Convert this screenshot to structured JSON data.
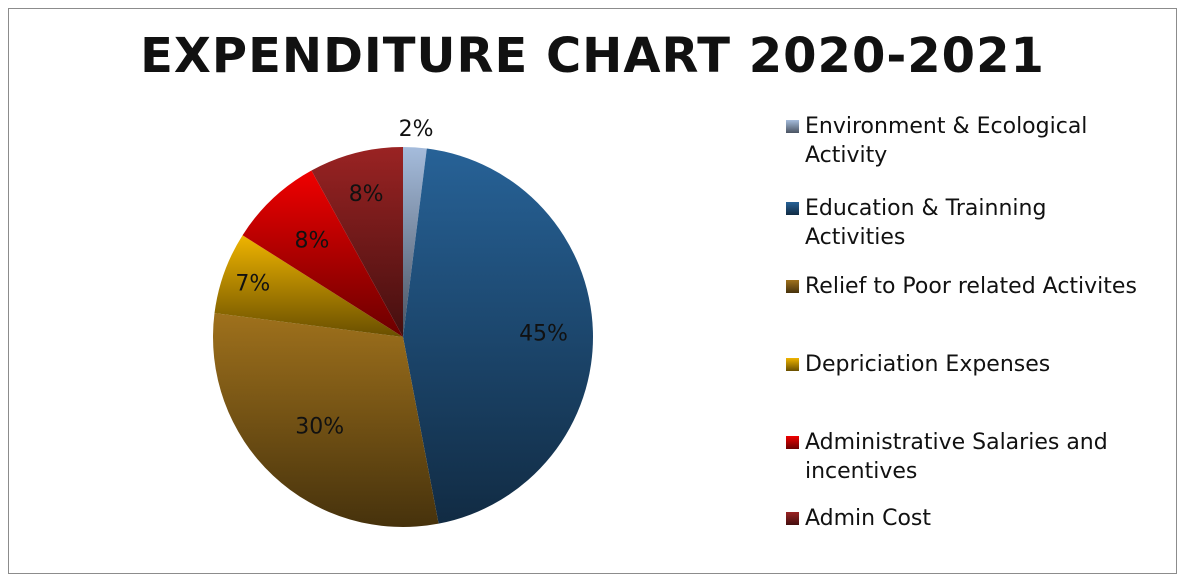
{
  "chart_data": {
    "type": "pie",
    "title": "EXPENDITURE CHART 2020-2021",
    "slices": [
      {
        "label": "Environment & Ecological Activity",
        "value": 2,
        "display": "2%",
        "color": "#8496b0"
      },
      {
        "label": "Education & Trainning Activities",
        "value": 45,
        "display": "45%",
        "color": "#1f4e79"
      },
      {
        "label": "Relief to Poor related Activites",
        "value": 30,
        "display": "30%",
        "color": "#7f5a16"
      },
      {
        "label": "Depriciation Expenses",
        "value": 7,
        "display": "7%",
        "color": "#bf9000"
      },
      {
        "label": "Administrative Salaries and incentives",
        "value": 8,
        "display": "8%",
        "color": "#c00000"
      },
      {
        "label": "Admin Cost",
        "value": 8,
        "display": "8%",
        "color": "#7b1c1c"
      }
    ],
    "legend_position": "right"
  }
}
